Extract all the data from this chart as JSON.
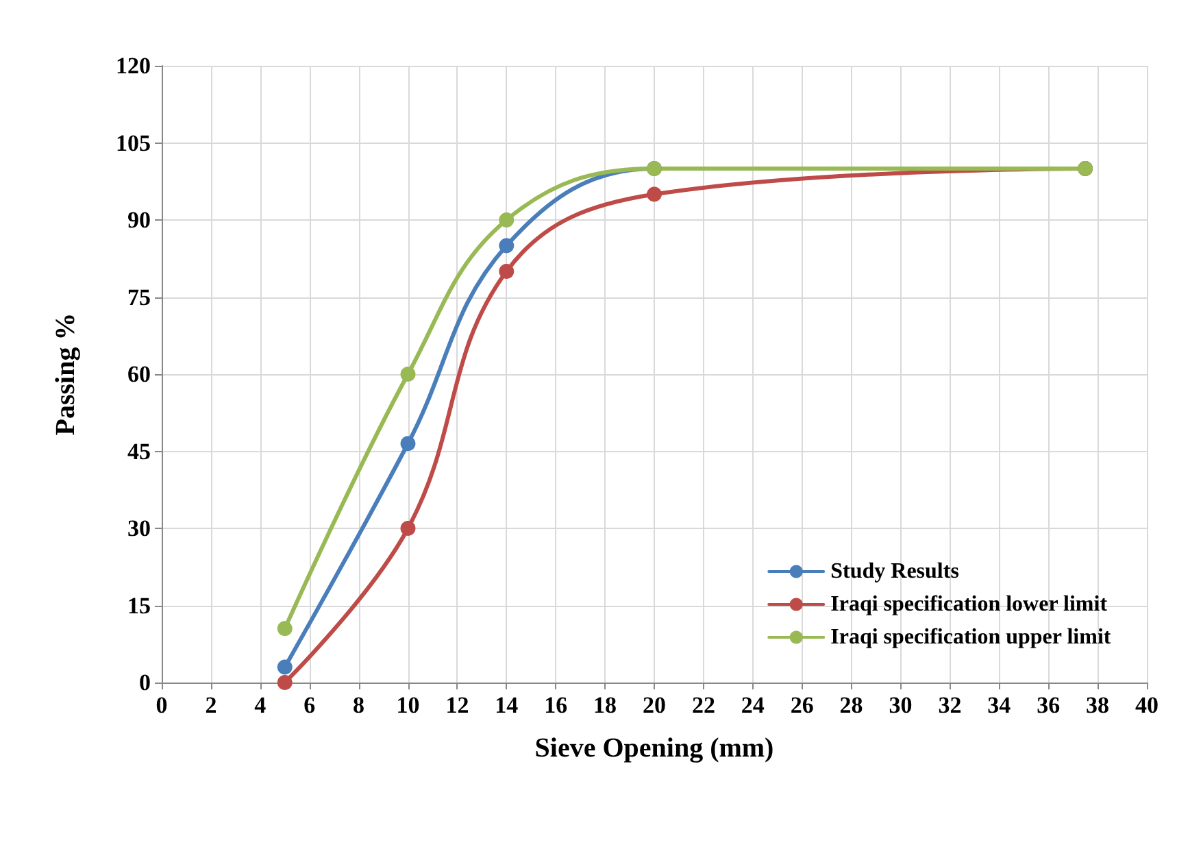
{
  "chart_data": {
    "type": "line",
    "xlabel": "Sieve Opening (mm)",
    "ylabel": "Passing %",
    "xlim": [
      0,
      40
    ],
    "xticks": [
      0,
      2,
      4,
      6,
      8,
      10,
      12,
      14,
      16,
      18,
      20,
      22,
      24,
      26,
      28,
      30,
      32,
      34,
      36,
      38,
      40
    ],
    "ylim": [
      0,
      120
    ],
    "yticks": [
      0,
      15,
      30,
      45,
      60,
      75,
      90,
      105,
      120
    ],
    "grid": true,
    "legend": "bottom right",
    "marker": "circle",
    "line_style": "solid",
    "series": [
      {
        "name": "Study Results",
        "color": "#4a7ebb",
        "x": [
          5,
          10,
          14,
          20,
          37.5
        ],
        "values": [
          3,
          46.5,
          85,
          100,
          100
        ]
      },
      {
        "name": "Iraqi specification lower limit",
        "color": "#be4b48",
        "x": [
          5,
          10,
          14,
          20,
          37.5
        ],
        "values": [
          0,
          30,
          80,
          95,
          100
        ]
      },
      {
        "name": "Iraqi specification upper limit",
        "color": "#98b954",
        "x": [
          5,
          10,
          14,
          20,
          37.5
        ],
        "values": [
          10.5,
          60,
          90,
          100,
          100
        ]
      }
    ]
  }
}
